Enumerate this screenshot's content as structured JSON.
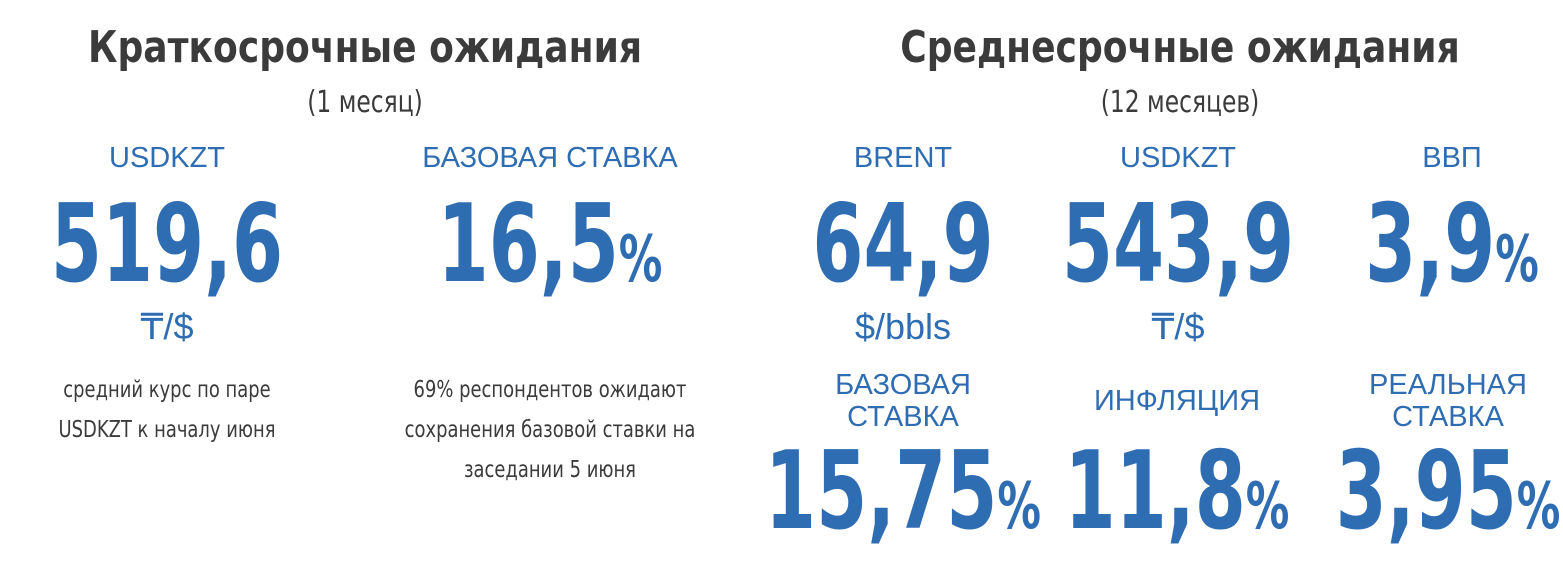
{
  "left": {
    "title": "Краткосрочные ожидания",
    "subtitle": "(1 месяц)",
    "items": [
      {
        "label": [
          "USDKZT"
        ],
        "value": "519,6",
        "unit": "₸/$",
        "note": [
          "средний курс по паре",
          "USDKZT к началу июня"
        ]
      },
      {
        "label": [
          "БАЗОВАЯ СТАВКА"
        ],
        "value": "16,5",
        "suffix": "%",
        "note": [
          "69% респондентов ожидают",
          "сохранения базовой ставки на",
          "заседании 5 июня"
        ]
      }
    ]
  },
  "right": {
    "title": "Среднесрочные ожидания",
    "subtitle": "(12 месяцев)",
    "items": [
      {
        "label": [
          "BRENT"
        ],
        "value": "64,9",
        "unit": "$/bbls"
      },
      {
        "label": [
          "USDKZT"
        ],
        "value": "543,9",
        "unit": "₸/$"
      },
      {
        "label": [
          "ВВП"
        ],
        "value": "3,9",
        "suffix": "%"
      },
      {
        "label": [
          "БАЗОВАЯ",
          "СТАВКА"
        ],
        "value": "15,75",
        "suffix": "%"
      },
      {
        "label": [
          "ИНФЛЯЦИЯ"
        ],
        "value": "11,8",
        "suffix": "%"
      },
      {
        "label": [
          "РЕАЛЬНАЯ",
          "СТАВКА"
        ],
        "value": "3,95",
        "suffix": "%"
      }
    ]
  }
}
